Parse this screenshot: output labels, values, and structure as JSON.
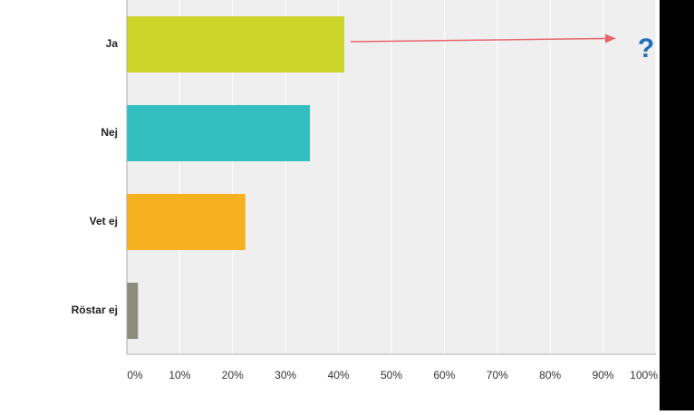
{
  "chart_data": {
    "type": "bar",
    "orientation": "horizontal",
    "categories": [
      "Ja",
      "Nej",
      "Vet ej",
      "Röstar ej"
    ],
    "values": [
      41.1,
      34.6,
      22.4,
      2.1
    ],
    "colors": [
      "#cdd52a",
      "#33bfbf",
      "#f7b020",
      "#8c8c7c"
    ],
    "xlim": [
      0,
      100
    ],
    "xticks": [
      {
        "value": 0,
        "label": "0%"
      },
      {
        "value": 10,
        "label": "10%"
      },
      {
        "value": 20,
        "label": "20%"
      },
      {
        "value": 30,
        "label": "30%"
      },
      {
        "value": 40,
        "label": "40%"
      },
      {
        "value": 50,
        "label": "50%"
      },
      {
        "value": 60,
        "label": "60%"
      },
      {
        "value": 70,
        "label": "70%"
      },
      {
        "value": 80,
        "label": "80%"
      },
      {
        "value": 90,
        "label": "90%"
      },
      {
        "value": 100,
        "label": "100%"
      }
    ],
    "grid": true,
    "annotation": "?"
  }
}
